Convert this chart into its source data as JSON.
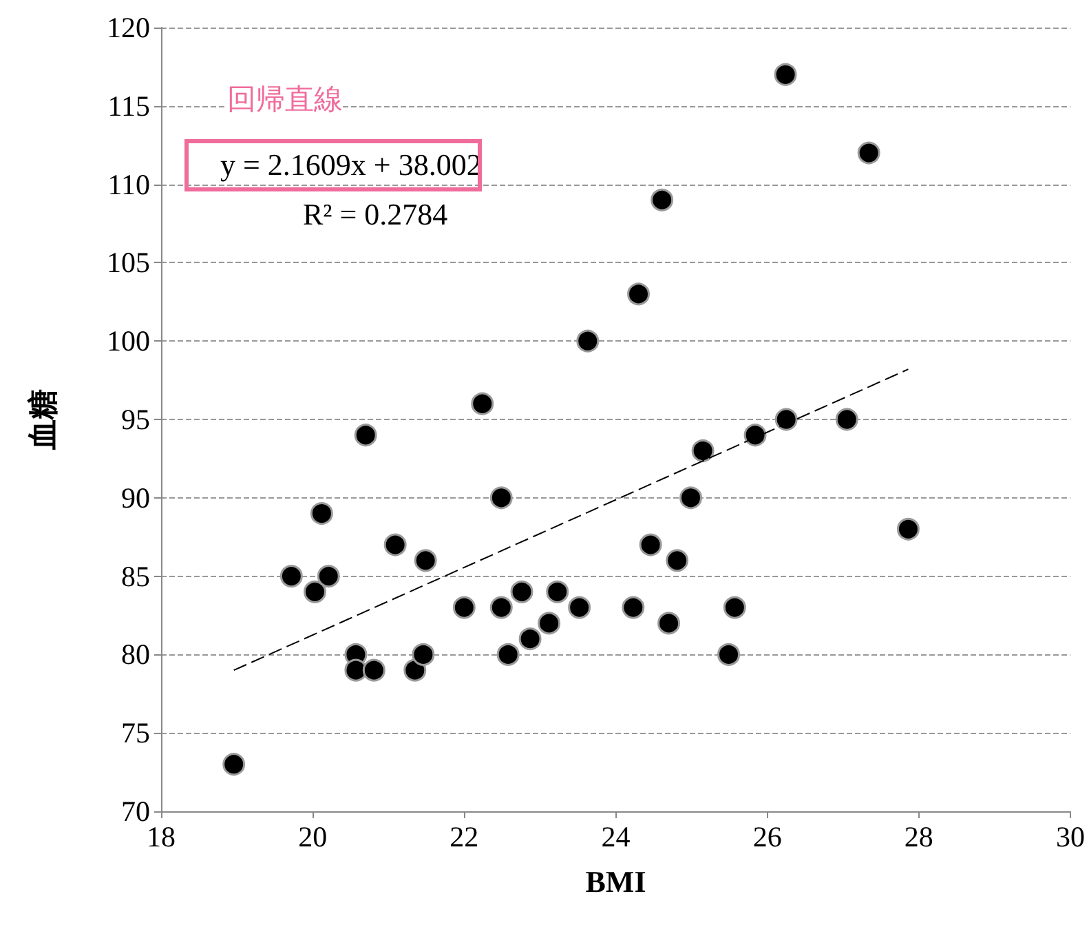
{
  "chart_data": {
    "type": "scatter",
    "xlabel": "BMI",
    "ylabel": "血糖",
    "annotations": [
      "回帰直線",
      "y = 2.1609x + 38.002",
      "R² = 0.2784"
    ],
    "series": [
      {
        "color": "#000000",
        "x": [
          18.96,
          19.72,
          20.03,
          20.12,
          20.21,
          20.57,
          20.57,
          20.7,
          20.81,
          21.09,
          21.35,
          21.46,
          21.49,
          22.0,
          22.24,
          22.49,
          22.49,
          22.58,
          22.76,
          22.87,
          23.12,
          23.23,
          23.52,
          23.63,
          24.23,
          24.3,
          24.46,
          24.61,
          24.7,
          24.81,
          24.99,
          25.15,
          25.49,
          25.57,
          25.84,
          26.24,
          26.25,
          27.05,
          27.34,
          27.86
        ],
        "values": [
          73,
          85,
          84,
          89,
          85,
          80,
          79,
          94,
          79,
          87,
          79,
          80,
          86,
          83,
          96,
          90,
          83,
          80,
          84,
          81,
          82,
          84,
          83,
          100,
          83,
          103,
          87,
          109,
          82,
          86,
          90,
          93,
          80,
          83,
          94,
          117,
          95,
          95,
          112,
          88
        ]
      },
      {
        "type": "line",
        "color": "#000000",
        "line_style": "dashed",
        "marker": "none",
        "x": [
          18.96,
          27.86
        ],
        "values": [
          79,
          98.2
        ]
      }
    ],
    "xlim": [
      18,
      30
    ],
    "xticks": [
      18,
      20,
      22,
      24,
      26,
      28,
      30
    ],
    "ylim": [
      70,
      120
    ],
    "yticks": [
      70,
      75,
      80,
      85,
      90,
      95,
      100,
      105,
      110,
      115,
      120
    ],
    "grid": "y",
    "marker": "circle"
  }
}
